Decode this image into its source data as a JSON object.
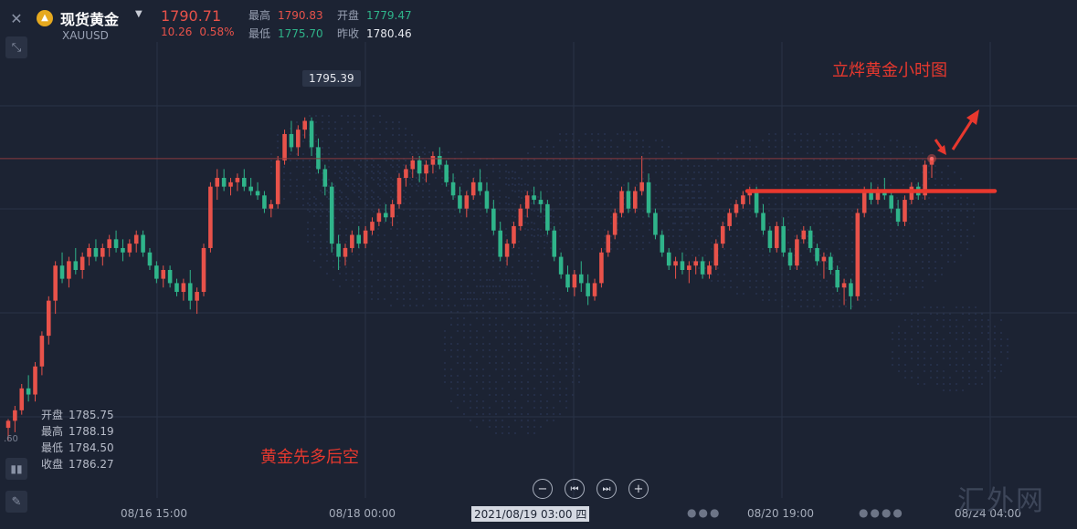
{
  "header": {
    "name": "现货黄金",
    "code": "XAUUSD",
    "last": "1790.71",
    "change": "10.26",
    "change_pct": "0.58%",
    "high_label": "最高",
    "high": "1790.83",
    "low_label": "最低",
    "low": "1775.70",
    "open_label": "开盘",
    "open": "1779.47",
    "prev_label": "昨收",
    "prev": "1780.46"
  },
  "ohlc_box": {
    "open_label": "开盘",
    "open": "1785.75",
    "high_label": "最高",
    "high": "1788.19",
    "low_label": "最低",
    "low": "1784.50",
    "close_label": "收盘",
    "close": "1786.27"
  },
  "annotations": {
    "top_right": "立烨黄金小时图",
    "bottom": "黄金先多后空"
  },
  "axis_fragment": ".60",
  "watermark": "汇外网",
  "colors": {
    "up": "#e8524a",
    "down": "#2fb48a",
    "annotation": "#e8382e",
    "background": "#1c2333"
  },
  "chart_data": {
    "type": "candlestick",
    "x_ticks": [
      "08/16 15:00",
      "08/18 00:00",
      "08/20 19:00",
      "08/24 04:00"
    ],
    "crosshair_time": "2021/08/19 03:00 四",
    "crosshair_price": "1795.39",
    "ylim": [
      1752,
      1804
    ],
    "resistance_level": 1787,
    "candles": [
      [
        1760.0,
        1761.0,
        1758.5,
        1760.8
      ],
      [
        1760.8,
        1762.5,
        1759.5,
        1762.0
      ],
      [
        1762.0,
        1765.0,
        1761.5,
        1764.5
      ],
      [
        1764.5,
        1766.0,
        1763.0,
        1763.8
      ],
      [
        1763.8,
        1767.5,
        1763.0,
        1767.0
      ],
      [
        1767.0,
        1771.0,
        1766.0,
        1770.5
      ],
      [
        1770.5,
        1775.0,
        1769.5,
        1774.5
      ],
      [
        1774.5,
        1779.0,
        1773.0,
        1778.5
      ],
      [
        1778.5,
        1780.0,
        1776.5,
        1777.0
      ],
      [
        1777.0,
        1779.5,
        1776.0,
        1779.0
      ],
      [
        1779.0,
        1780.5,
        1777.5,
        1778.0
      ],
      [
        1778.0,
        1780.0,
        1777.0,
        1779.5
      ],
      [
        1779.5,
        1781.0,
        1778.5,
        1780.5
      ],
      [
        1780.5,
        1781.5,
        1779.0,
        1779.5
      ],
      [
        1779.5,
        1781.0,
        1778.5,
        1780.5
      ],
      [
        1780.5,
        1782.0,
        1779.5,
        1781.5
      ],
      [
        1781.5,
        1782.5,
        1780.0,
        1780.5
      ],
      [
        1780.5,
        1781.5,
        1779.0,
        1780.0
      ],
      [
        1780.0,
        1781.5,
        1779.5,
        1781.0
      ],
      [
        1781.0,
        1782.5,
        1780.0,
        1782.0
      ],
      [
        1782.0,
        1782.5,
        1779.5,
        1780.0
      ],
      [
        1780.0,
        1780.5,
        1778.0,
        1778.5
      ],
      [
        1778.5,
        1779.0,
        1776.5,
        1777.0
      ],
      [
        1777.0,
        1778.5,
        1776.0,
        1778.0
      ],
      [
        1778.0,
        1778.5,
        1776.0,
        1776.5
      ],
      [
        1776.5,
        1777.0,
        1775.0,
        1775.5
      ],
      [
        1775.5,
        1777.0,
        1774.5,
        1776.5
      ],
      [
        1776.5,
        1778.0,
        1773.5,
        1774.5
      ],
      [
        1774.5,
        1776.0,
        1773.0,
        1775.5
      ],
      [
        1775.5,
        1781.0,
        1775.0,
        1780.5
      ],
      [
        1780.5,
        1788.0,
        1780.0,
        1787.5
      ],
      [
        1787.5,
        1789.5,
        1786.0,
        1788.5
      ],
      [
        1788.5,
        1789.5,
        1787.0,
        1787.5
      ],
      [
        1787.5,
        1788.5,
        1786.5,
        1788.0
      ],
      [
        1788.0,
        1789.0,
        1787.0,
        1788.5
      ],
      [
        1788.5,
        1789.5,
        1787.0,
        1787.5
      ],
      [
        1787.5,
        1788.5,
        1786.5,
        1787.0
      ],
      [
        1787.0,
        1788.0,
        1786.0,
        1786.5
      ],
      [
        1786.5,
        1787.0,
        1784.5,
        1785.0
      ],
      [
        1785.0,
        1786.0,
        1784.0,
        1785.5
      ],
      [
        1785.5,
        1791.0,
        1785.0,
        1790.5
      ],
      [
        1790.5,
        1794.0,
        1790.0,
        1793.5
      ],
      [
        1793.5,
        1795.0,
        1791.5,
        1792.0
      ],
      [
        1792.0,
        1794.5,
        1791.0,
        1794.0
      ],
      [
        1794.0,
        1795.4,
        1793.0,
        1795.0
      ],
      [
        1795.0,
        1795.4,
        1791.0,
        1792.0
      ],
      [
        1792.0,
        1793.0,
        1789.0,
        1789.5
      ],
      [
        1789.5,
        1790.0,
        1786.5,
        1787.5
      ],
      [
        1787.5,
        1788.0,
        1780.0,
        1781.0
      ],
      [
        1781.0,
        1782.0,
        1778.0,
        1779.5
      ],
      [
        1779.5,
        1781.0,
        1778.5,
        1780.5
      ],
      [
        1780.5,
        1782.5,
        1780.0,
        1782.0
      ],
      [
        1782.0,
        1783.0,
        1780.5,
        1781.0
      ],
      [
        1781.0,
        1783.0,
        1780.5,
        1782.5
      ],
      [
        1782.5,
        1784.0,
        1782.0,
        1783.5
      ],
      [
        1783.5,
        1785.0,
        1783.0,
        1784.5
      ],
      [
        1784.5,
        1785.5,
        1783.5,
        1784.0
      ],
      [
        1784.0,
        1786.0,
        1783.0,
        1785.5
      ],
      [
        1785.5,
        1789.0,
        1785.0,
        1788.5
      ],
      [
        1788.5,
        1790.0,
        1787.5,
        1789.5
      ],
      [
        1789.5,
        1791.0,
        1788.5,
        1790.5
      ],
      [
        1790.5,
        1791.0,
        1788.0,
        1789.0
      ],
      [
        1789.0,
        1790.5,
        1788.0,
        1790.0
      ],
      [
        1790.0,
        1791.5,
        1789.0,
        1791.0
      ],
      [
        1791.0,
        1792.0,
        1789.5,
        1790.0
      ],
      [
        1790.0,
        1790.5,
        1787.5,
        1788.0
      ],
      [
        1788.0,
        1789.0,
        1786.0,
        1786.5
      ],
      [
        1786.5,
        1787.5,
        1784.5,
        1785.0
      ],
      [
        1785.0,
        1787.0,
        1784.0,
        1786.5
      ],
      [
        1786.5,
        1788.5,
        1786.0,
        1788.0
      ],
      [
        1788.0,
        1789.5,
        1786.5,
        1787.0
      ],
      [
        1787.0,
        1788.0,
        1784.5,
        1785.0
      ],
      [
        1785.0,
        1786.0,
        1782.0,
        1782.5
      ],
      [
        1782.5,
        1783.5,
        1779.0,
        1779.5
      ],
      [
        1779.5,
        1781.5,
        1778.5,
        1781.0
      ],
      [
        1781.0,
        1783.5,
        1780.5,
        1783.0
      ],
      [
        1783.0,
        1785.5,
        1782.5,
        1785.0
      ],
      [
        1785.0,
        1787.0,
        1784.0,
        1786.5
      ],
      [
        1786.5,
        1787.5,
        1785.5,
        1786.0
      ],
      [
        1786.0,
        1787.0,
        1784.5,
        1785.5
      ],
      [
        1785.5,
        1786.0,
        1782.0,
        1782.5
      ],
      [
        1782.5,
        1783.0,
        1779.0,
        1779.5
      ],
      [
        1779.5,
        1780.0,
        1777.0,
        1777.5
      ],
      [
        1777.5,
        1778.5,
        1775.5,
        1776.0
      ],
      [
        1776.0,
        1778.0,
        1775.0,
        1777.5
      ],
      [
        1777.5,
        1779.0,
        1775.5,
        1776.5
      ],
      [
        1776.5,
        1777.5,
        1774.0,
        1775.0
      ],
      [
        1775.0,
        1777.0,
        1774.5,
        1776.5
      ],
      [
        1776.5,
        1780.5,
        1776.0,
        1780.0
      ],
      [
        1780.0,
        1782.5,
        1779.5,
        1782.0
      ],
      [
        1782.0,
        1785.0,
        1781.5,
        1784.5
      ],
      [
        1784.5,
        1787.5,
        1784.0,
        1787.0
      ],
      [
        1787.0,
        1788.0,
        1784.5,
        1785.0
      ],
      [
        1785.0,
        1787.5,
        1784.5,
        1787.0
      ],
      [
        1787.0,
        1791.0,
        1786.5,
        1788.0
      ],
      [
        1788.0,
        1789.0,
        1784.0,
        1784.5
      ],
      [
        1784.5,
        1785.0,
        1781.5,
        1782.0
      ],
      [
        1782.0,
        1782.5,
        1779.5,
        1780.0
      ],
      [
        1780.0,
        1780.5,
        1778.0,
        1778.5
      ],
      [
        1778.5,
        1779.5,
        1777.0,
        1779.0
      ],
      [
        1779.0,
        1780.0,
        1777.5,
        1778.0
      ],
      [
        1778.0,
        1779.0,
        1776.5,
        1778.5
      ],
      [
        1778.5,
        1779.5,
        1777.5,
        1779.0
      ],
      [
        1779.0,
        1779.5,
        1777.0,
        1777.5
      ],
      [
        1777.5,
        1779.0,
        1777.0,
        1778.5
      ],
      [
        1778.5,
        1781.5,
        1778.0,
        1781.0
      ],
      [
        1781.0,
        1783.5,
        1780.5,
        1783.0
      ],
      [
        1783.0,
        1785.0,
        1782.5,
        1784.5
      ],
      [
        1784.5,
        1786.0,
        1784.0,
        1785.5
      ],
      [
        1785.5,
        1787.0,
        1785.0,
        1786.5
      ],
      [
        1786.5,
        1787.5,
        1785.5,
        1787.0
      ],
      [
        1787.0,
        1787.5,
        1784.0,
        1784.5
      ],
      [
        1784.5,
        1785.5,
        1782.0,
        1782.5
      ],
      [
        1782.5,
        1783.0,
        1780.0,
        1780.5
      ],
      [
        1780.5,
        1783.5,
        1780.0,
        1783.0
      ],
      [
        1783.0,
        1784.0,
        1779.5,
        1780.0
      ],
      [
        1780.0,
        1780.5,
        1778.0,
        1778.5
      ],
      [
        1778.5,
        1782.0,
        1778.0,
        1781.5
      ],
      [
        1781.5,
        1783.0,
        1781.0,
        1782.5
      ],
      [
        1782.5,
        1783.0,
        1780.0,
        1780.5
      ],
      [
        1780.5,
        1781.0,
        1778.5,
        1779.0
      ],
      [
        1779.0,
        1780.0,
        1777.0,
        1779.5
      ],
      [
        1779.5,
        1780.0,
        1777.5,
        1778.0
      ],
      [
        1778.0,
        1778.5,
        1775.5,
        1776.0
      ],
      [
        1776.0,
        1777.0,
        1774.0,
        1776.5
      ],
      [
        1776.5,
        1777.0,
        1773.5,
        1775.0
      ],
      [
        1775.0,
        1785.0,
        1774.5,
        1784.5
      ],
      [
        1784.5,
        1787.5,
        1784.0,
        1787.0
      ],
      [
        1787.0,
        1788.0,
        1785.5,
        1786.0
      ],
      [
        1786.0,
        1787.5,
        1785.5,
        1787.0
      ],
      [
        1787.0,
        1788.5,
        1786.0,
        1786.5
      ],
      [
        1786.5,
        1787.0,
        1784.5,
        1785.0
      ],
      [
        1785.0,
        1786.0,
        1783.0,
        1783.5
      ],
      [
        1783.5,
        1786.5,
        1783.0,
        1786.0
      ],
      [
        1786.0,
        1788.0,
        1785.5,
        1787.5
      ],
      [
        1787.5,
        1788.0,
        1786.0,
        1786.5
      ],
      [
        1786.5,
        1790.5,
        1786.0,
        1790.0
      ],
      [
        1790.0,
        1790.8,
        1788.5,
        1790.7
      ]
    ]
  }
}
